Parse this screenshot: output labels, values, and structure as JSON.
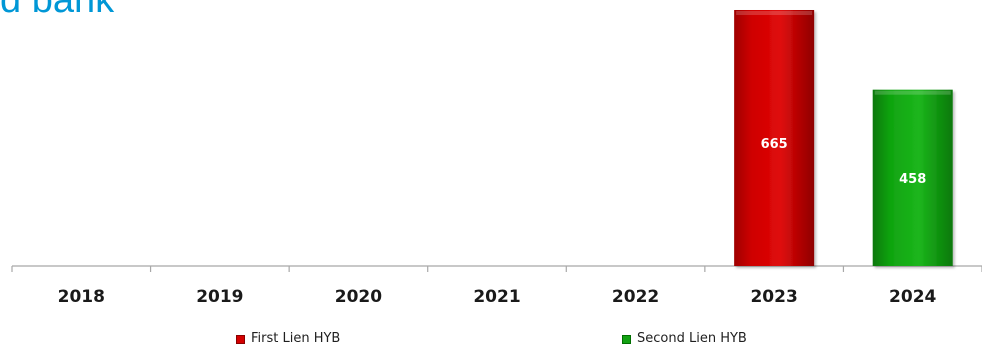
{
  "title_fragment": "d bank",
  "title_color": "#0097d6",
  "chart_data": {
    "type": "bar",
    "categories": [
      "2018",
      "2019",
      "2020",
      "2021",
      "2022",
      "2023",
      "2024"
    ],
    "series": [
      {
        "name": "First Lien HYB",
        "color": "#d40000",
        "values": [
          null,
          null,
          null,
          null,
          null,
          665,
          null
        ]
      },
      {
        "name": "Second Lien HYB",
        "color": "#12a212",
        "values": [
          null,
          null,
          null,
          null,
          null,
          null,
          458
        ]
      }
    ],
    "data_labels": true,
    "ylim": [
      0,
      665
    ],
    "grid": false,
    "legend": "bottom"
  }
}
